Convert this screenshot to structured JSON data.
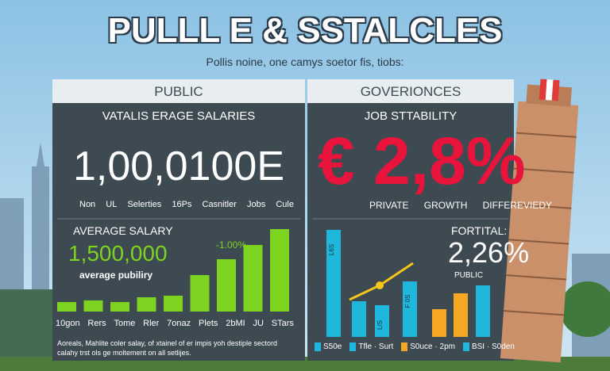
{
  "title": "PULLL E & SSTALCLES",
  "subtitle": "Pollis noine, one camys soetor fis, tiobs:",
  "left_panel": {
    "header": "PUBLIC",
    "heading": "VATALIS ERAGE SALARIES",
    "big_number": "1,00,0100E",
    "labels": [
      "Non",
      "UL",
      "Selerties",
      "16Ps",
      "Casnitler",
      "Jobs",
      "Cule"
    ],
    "chart": {
      "title": "AVERAGE SALARY",
      "value": "1,500,000",
      "caption": "average pubiliry",
      "change": "-1.00%",
      "color": "#7ed321",
      "bars": [
        12,
        14,
        12,
        18,
        20,
        46,
        66,
        84,
        104
      ],
      "labels": [
        "10gon",
        "Rers",
        "Tome",
        "Rler",
        "7onaz",
        "Plets",
        "2bMI",
        "JU",
        "STars"
      ]
    },
    "footnote": [
      "Aoreals, Mahlite coler salay, of xtainel of er impis yoh destiple sectord",
      "calahy trst ols ge moltement on all setlijes."
    ]
  },
  "right_panel": {
    "header": "GOVERIONCES",
    "heading": "JOB STTABILITY",
    "big_number": "€ 2,8%",
    "labels": [
      "PRIVATE",
      "GROWTH",
      "DIFFEREVIEDY"
    ],
    "chart": {
      "title": "FORTITAL:",
      "value": "2,26%",
      "caption": "PUBLIC",
      "bars": [
        {
          "value": 135,
          "color": "#1fb8dc",
          "text": "L6S"
        },
        {
          "value": 45,
          "color": "#1fb8dc"
        },
        {
          "value": 40,
          "color": "#1fb8dc",
          "text": "L/S"
        },
        {
          "value": 70,
          "color": "#1fb8dc",
          "text": "F 0S"
        },
        {
          "value": 35,
          "color": "#f5a623"
        },
        {
          "value": 55,
          "color": "#f5a623"
        },
        {
          "value": 65,
          "color": "#1fb8dc"
        }
      ],
      "legend": [
        {
          "name": "S50e",
          "color": "#1fb8dc"
        },
        {
          "name": "Tfle · Surt",
          "color": "#1fb8dc"
        },
        {
          "name": "S0uce · 2pm",
          "color": "#f5a623"
        },
        {
          "name": "BSI · S0den",
          "color": "#1fb8dc"
        }
      ]
    }
  }
}
